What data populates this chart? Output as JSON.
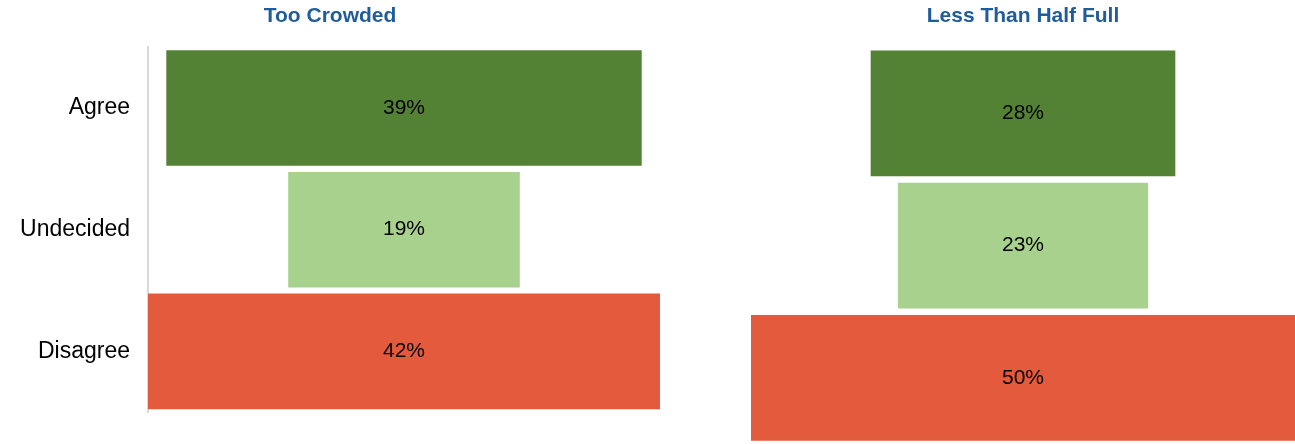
{
  "chart_data": [
    {
      "type": "other",
      "title": "Too Crowded",
      "categories": [
        "Agree",
        "Undecided",
        "Disagree"
      ],
      "values": [
        39,
        19,
        42
      ],
      "colors": [
        "#548235",
        "#a9d18e",
        "#e35a3c"
      ],
      "value_labels": [
        "39%",
        "19%",
        "42%"
      ]
    },
    {
      "type": "other",
      "title": "Less Than Half Full",
      "categories": [
        null,
        null,
        null
      ],
      "values": [
        28,
        23,
        50
      ],
      "colors": [
        "#548235",
        "#a9d18e",
        "#e35a3c"
      ],
      "value_labels": [
        "28%",
        "23%",
        "50%"
      ]
    }
  ]
}
